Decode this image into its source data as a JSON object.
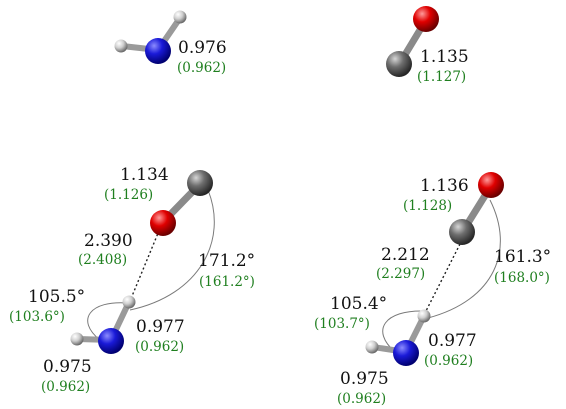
{
  "colors": {
    "nitrogen": "#1a1ad8",
    "oxygen": "#e00000",
    "carbon": "#6e6e6e",
    "hydrogen": "#cfcfcf",
    "primary_text": "#111111",
    "secondary_text": "#1f7f1f"
  },
  "panels": {
    "nh2": {
      "bond": "0.976",
      "bond_ref": "(0.962)"
    },
    "co": {
      "bond": "1.135",
      "bond_ref": "(1.127)"
    },
    "complex_a": {
      "co_bond": "1.134",
      "co_bond_ref": "(1.126)",
      "distance": "2.390",
      "distance_ref": "(2.408)",
      "angle_right": "171.2°",
      "angle_right_ref": "(161.2°)",
      "angle_left": "105.5°",
      "angle_left_ref": "(103.6°)",
      "nh_upper": "0.977",
      "nh_upper_ref": "(0.962)",
      "nh_lower": "0.975",
      "nh_lower_ref": "(0.962)"
    },
    "complex_b": {
      "co_bond": "1.136",
      "co_bond_ref": "(1.128)",
      "distance": "2.212",
      "distance_ref": "(2.297)",
      "angle_right": "161.3°",
      "angle_right_ref": "(168.0°)",
      "angle_left": "105.4°",
      "angle_left_ref": "(103.7°)",
      "nh_upper": "0.977",
      "nh_upper_ref": "(0.962)",
      "nh_lower": "0.975",
      "nh_lower_ref": "(0.962)"
    }
  }
}
